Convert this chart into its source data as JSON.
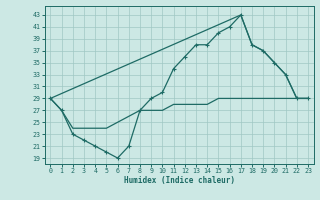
{
  "xlabel": "Humidex (Indice chaleur)",
  "bg_color": "#cce8e4",
  "line_color": "#1e6b65",
  "grid_color": "#a0c8c4",
  "xlim": [
    -0.5,
    23.5
  ],
  "ylim": [
    18,
    44.5
  ],
  "yticks": [
    19,
    21,
    23,
    25,
    27,
    29,
    31,
    33,
    35,
    37,
    39,
    41,
    43
  ],
  "xticks": [
    0,
    1,
    2,
    3,
    4,
    5,
    6,
    7,
    8,
    9,
    10,
    11,
    12,
    13,
    14,
    15,
    16,
    17,
    18,
    19,
    20,
    21,
    22,
    23
  ],
  "curve1_x": [
    0,
    1,
    2,
    3,
    4,
    5,
    6,
    7,
    8,
    9,
    10,
    11,
    12,
    13,
    14,
    15,
    16,
    17,
    18,
    19,
    20,
    21,
    22,
    23
  ],
  "curve1_y": [
    29,
    27,
    23,
    22,
    21,
    20,
    19,
    21,
    27,
    29,
    30,
    34,
    36,
    38,
    38,
    40,
    41,
    43,
    38,
    37,
    35,
    33,
    29,
    29
  ],
  "curve2_x": [
    0,
    17,
    18,
    19,
    20,
    21,
    22,
    23
  ],
  "curve2_y": [
    29,
    43,
    38,
    37,
    35,
    33,
    29,
    29
  ],
  "curve3_x": [
    0,
    1,
    2,
    3,
    4,
    5,
    6,
    7,
    8,
    9,
    10,
    11,
    12,
    13,
    14,
    15,
    16,
    17,
    18,
    19,
    20,
    21,
    22,
    23
  ],
  "curve3_y": [
    29,
    27,
    24,
    24,
    24,
    24,
    25,
    26,
    27,
    27,
    27,
    28,
    28,
    28,
    28,
    29,
    29,
    29,
    29,
    29,
    29,
    29,
    29,
    29
  ]
}
